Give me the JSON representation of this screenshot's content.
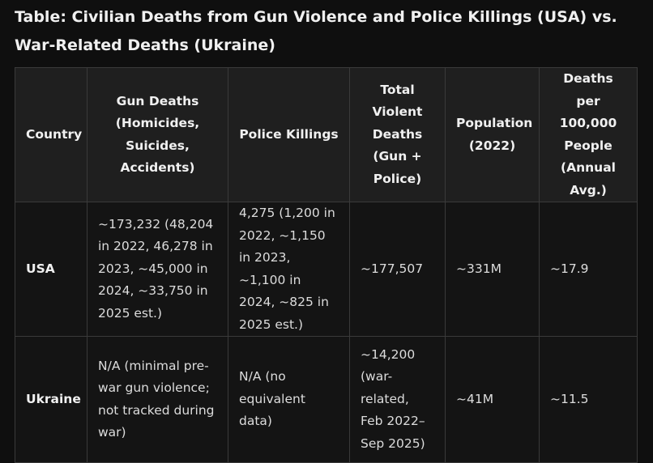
{
  "title": "Table: Civilian Deaths from Gun Violence and Police Killings (USA) vs. War-Related Deaths (Ukraine)",
  "table": {
    "headers": [
      "Country",
      "Gun Deaths (Homicides, Suicides, Accidents)",
      "Police Killings",
      "Total Violent Deaths (Gun + Police)",
      "Population (2022)",
      "Deaths per 100,000 People (Annual Avg.)"
    ],
    "rows": [
      [
        "USA",
        "~173,232 (48,204 in 2022, 46,278 in 2023, ~45,000 in 2024, ~33,750 in 2025 est.)",
        "4,275 (1,200 in 2022, ~1,150 in 2023, ~1,100 in 2024, ~825 in 2025 est.)",
        "~177,507",
        "~331M",
        "~17.9"
      ],
      [
        "Ukraine",
        "N/A (minimal pre-war gun violence; not tracked during war)",
        "N/A (no equivalent data)",
        "~14,200 (war-related, Feb 2022–Sep 2025)",
        "~41M",
        "~11.5"
      ]
    ]
  }
}
